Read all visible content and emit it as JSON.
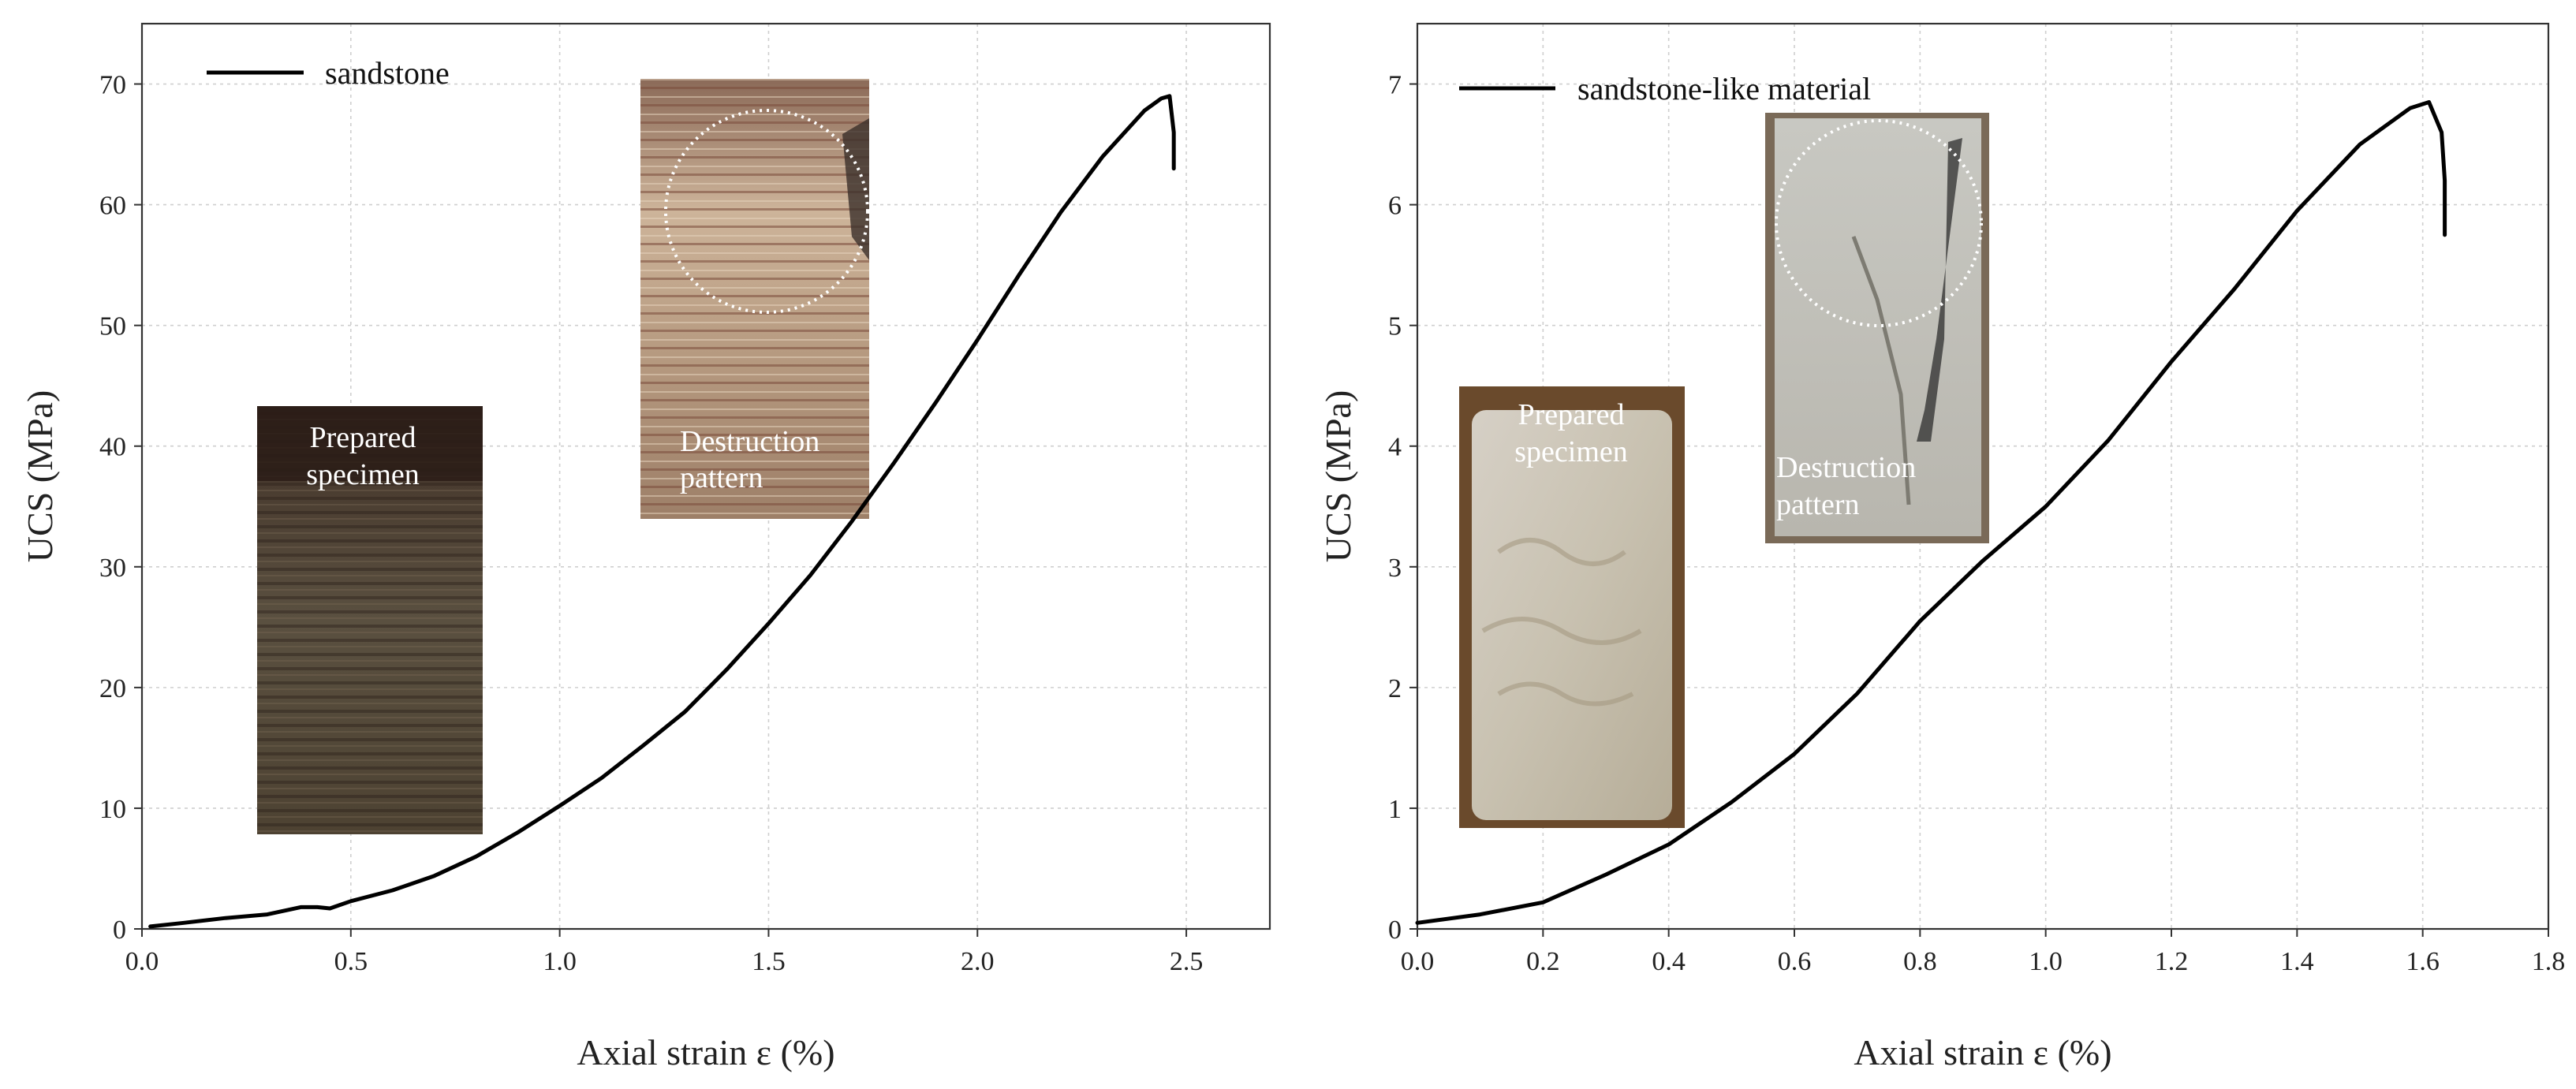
{
  "chart_data": [
    {
      "type": "line",
      "xlabel": "Axial strain ε  (%)",
      "ylabel": "UCS  (MPa)",
      "xlim": [
        0,
        2.7
      ],
      "ylim": [
        0,
        75
      ],
      "xticks": [
        "0.0",
        "0.5",
        "1.0",
        "1.5",
        "2.0",
        "2.5"
      ],
      "yticks": [
        "0",
        "10",
        "20",
        "30",
        "40",
        "50",
        "60",
        "70"
      ],
      "grid": true,
      "legend_position": "top-left",
      "series": [
        {
          "name": "sandstone",
          "x": [
            0.02,
            0.1,
            0.2,
            0.3,
            0.38,
            0.42,
            0.45,
            0.5,
            0.6,
            0.7,
            0.8,
            0.9,
            1.0,
            1.1,
            1.2,
            1.3,
            1.4,
            1.5,
            1.6,
            1.7,
            1.8,
            1.9,
            2.0,
            2.1,
            2.2,
            2.3,
            2.4,
            2.44,
            2.46,
            2.47,
            2.47
          ],
          "y": [
            0.2,
            0.5,
            0.9,
            1.2,
            1.8,
            1.8,
            1.7,
            2.3,
            3.2,
            4.4,
            6.0,
            8.0,
            10.2,
            12.5,
            15.2,
            18.0,
            21.5,
            25.3,
            29.3,
            33.8,
            38.6,
            43.6,
            48.8,
            54.2,
            59.4,
            64.0,
            67.8,
            68.8,
            69.0,
            66.0,
            63.0
          ]
        }
      ],
      "insets": [
        {
          "label_lines": [
            "Prepared",
            "specimen"
          ]
        },
        {
          "label_lines": [
            "Destruction",
            "pattern"
          ]
        }
      ]
    },
    {
      "type": "line",
      "xlabel": "Axial strain ε  (%)",
      "ylabel": "UCS  (MPa)",
      "xlim": [
        0,
        1.8
      ],
      "ylim": [
        0,
        7.5
      ],
      "xticks": [
        "0.0",
        "0.2",
        "0.4",
        "0.6",
        "0.8",
        "1.0",
        "1.2",
        "1.4",
        "1.6",
        "1.8"
      ],
      "yticks": [
        "0",
        "1",
        "2",
        "3",
        "4",
        "5",
        "6",
        "7"
      ],
      "grid": true,
      "legend_position": "top-left",
      "series": [
        {
          "name": "sandstone-like material",
          "x": [
            0.0,
            0.1,
            0.2,
            0.3,
            0.4,
            0.5,
            0.6,
            0.7,
            0.8,
            0.9,
            1.0,
            1.1,
            1.2,
            1.3,
            1.4,
            1.5,
            1.58,
            1.61,
            1.63,
            1.635,
            1.635
          ],
          "y": [
            0.05,
            0.12,
            0.22,
            0.45,
            0.7,
            1.05,
            1.45,
            1.95,
            2.55,
            3.05,
            3.5,
            4.05,
            4.7,
            5.3,
            5.95,
            6.5,
            6.8,
            6.85,
            6.6,
            6.2,
            5.75
          ]
        }
      ],
      "insets": [
        {
          "label_lines": [
            "Prepared",
            "specimen"
          ]
        },
        {
          "label_lines": [
            "Destruction",
            "pattern"
          ]
        }
      ]
    }
  ]
}
